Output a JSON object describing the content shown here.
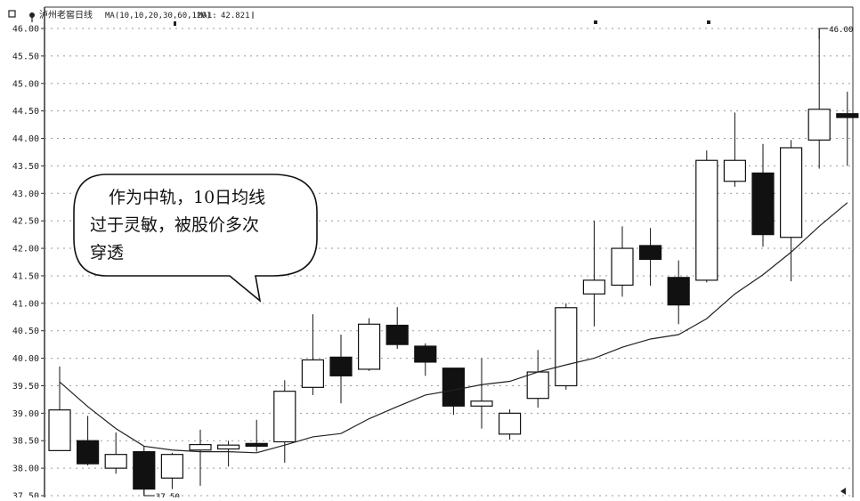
{
  "header": {
    "title": "泸州老窖日线",
    "ma_label": "MA(10,10,20,30,60,120)",
    "ma1_label": "MA1:",
    "ma1_value": "42.821"
  },
  "annotation": {
    "lines": [
      "作为中轨，10日均线",
      "过于灵敏，被股价多次",
      "穿透"
    ]
  },
  "chart_data": {
    "type": "candlestick",
    "ylim": [
      37.5,
      46.0
    ],
    "yticks": [
      "46.00",
      "45.50",
      "45.00",
      "44.50",
      "44.00",
      "43.50",
      "43.00",
      "42.50",
      "42.00",
      "41.50",
      "41.00",
      "40.50",
      "40.00",
      "39.50",
      "39.00",
      "38.50",
      "38.00",
      "37.50"
    ],
    "high_label": "46.00",
    "low_label": "37.50",
    "candles": [
      {
        "open": 38.32,
        "high": 39.85,
        "low": 38.32,
        "close": 39.06
      },
      {
        "open": 38.5,
        "high": 38.95,
        "low": 38.05,
        "close": 38.08
      },
      {
        "open": 38.0,
        "high": 38.65,
        "low": 37.9,
        "close": 38.25
      },
      {
        "open": 38.3,
        "high": 38.4,
        "low": 37.5,
        "close": 37.62
      },
      {
        "open": 37.82,
        "high": 38.28,
        "low": 37.62,
        "close": 38.25
      },
      {
        "open": 38.33,
        "high": 38.7,
        "low": 37.68,
        "close": 38.43
      },
      {
        "open": 38.35,
        "high": 38.5,
        "low": 38.03,
        "close": 38.42
      },
      {
        "open": 38.45,
        "high": 38.88,
        "low": 38.3,
        "close": 38.4
      },
      {
        "open": 38.48,
        "high": 39.6,
        "low": 38.1,
        "close": 39.4
      },
      {
        "open": 39.47,
        "high": 40.8,
        "low": 39.33,
        "close": 39.97
      },
      {
        "open": 40.02,
        "high": 40.43,
        "low": 39.18,
        "close": 39.68
      },
      {
        "open": 39.8,
        "high": 40.73,
        "low": 39.77,
        "close": 40.62
      },
      {
        "open": 40.6,
        "high": 40.93,
        "low": 40.17,
        "close": 40.25
      },
      {
        "open": 40.22,
        "high": 40.27,
        "low": 39.68,
        "close": 39.93
      },
      {
        "open": 39.82,
        "high": 39.82,
        "low": 38.97,
        "close": 39.13
      },
      {
        "open": 39.13,
        "high": 40.0,
        "low": 38.72,
        "close": 39.22
      },
      {
        "open": 38.62,
        "high": 39.07,
        "low": 38.52,
        "close": 39.0
      },
      {
        "open": 39.27,
        "high": 40.15,
        "low": 39.1,
        "close": 39.75
      },
      {
        "open": 39.5,
        "high": 41.0,
        "low": 39.43,
        "close": 40.92
      },
      {
        "open": 41.17,
        "high": 42.5,
        "low": 40.58,
        "close": 41.42
      },
      {
        "open": 41.33,
        "high": 42.4,
        "low": 41.12,
        "close": 42.0
      },
      {
        "open": 42.05,
        "high": 42.37,
        "low": 41.32,
        "close": 41.8
      },
      {
        "open": 41.47,
        "high": 41.78,
        "low": 40.62,
        "close": 40.97
      },
      {
        "open": 41.42,
        "high": 43.78,
        "low": 41.38,
        "close": 43.6
      },
      {
        "open": 43.22,
        "high": 44.47,
        "low": 43.12,
        "close": 43.6
      },
      {
        "open": 43.37,
        "high": 43.9,
        "low": 42.03,
        "close": 42.25
      },
      {
        "open": 42.2,
        "high": 43.97,
        "low": 41.4,
        "close": 43.83
      },
      {
        "open": 43.97,
        "high": 46.0,
        "low": 43.45,
        "close": 44.53
      },
      {
        "open": 44.45,
        "high": 44.85,
        "low": 43.5,
        "close": 44.38
      }
    ],
    "ma10": [
      39.57,
      39.12,
      38.72,
      38.4,
      38.33,
      38.3,
      38.3,
      38.28,
      38.42,
      38.57,
      38.63,
      38.9,
      39.12,
      39.33,
      39.42,
      39.52,
      39.58,
      39.75,
      39.88,
      40.0,
      40.2,
      40.35,
      40.43,
      40.72,
      41.17,
      41.52,
      41.93,
      42.4,
      42.83
    ]
  }
}
